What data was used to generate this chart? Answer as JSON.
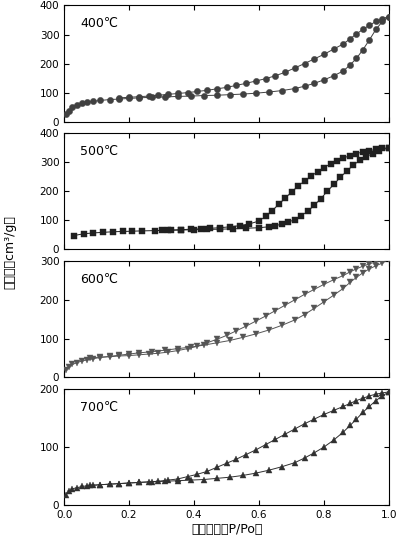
{
  "panels": [
    {
      "label": "400℃",
      "marker": "o",
      "color": "#404040",
      "ylim": [
        0,
        400
      ],
      "yticks": [
        0,
        100,
        200,
        300,
        400
      ],
      "ads_x": [
        0.005,
        0.015,
        0.025,
        0.04,
        0.055,
        0.07,
        0.09,
        0.11,
        0.14,
        0.17,
        0.2,
        0.23,
        0.27,
        0.31,
        0.35,
        0.39,
        0.43,
        0.47,
        0.51,
        0.55,
        0.59,
        0.63,
        0.67,
        0.71,
        0.74,
        0.77,
        0.8,
        0.83,
        0.86,
        0.88,
        0.9,
        0.92,
        0.94,
        0.96,
        0.98,
        1.0
      ],
      "ads_y": [
        25,
        38,
        50,
        58,
        63,
        67,
        70,
        73,
        76,
        78,
        80,
        82,
        84,
        85,
        87,
        88,
        90,
        91,
        93,
        95,
        98,
        102,
        107,
        114,
        122,
        132,
        144,
        158,
        175,
        195,
        218,
        248,
        282,
        318,
        345,
        362
      ],
      "des_x": [
        1.0,
        0.98,
        0.96,
        0.94,
        0.92,
        0.9,
        0.88,
        0.86,
        0.83,
        0.8,
        0.77,
        0.74,
        0.71,
        0.68,
        0.65,
        0.62,
        0.59,
        0.56,
        0.53,
        0.5,
        0.47,
        0.44,
        0.41,
        0.38,
        0.35,
        0.32,
        0.29,
        0.26,
        0.23,
        0.2,
        0.17
      ],
      "des_y": [
        362,
        355,
        345,
        332,
        318,
        302,
        285,
        268,
        250,
        232,
        216,
        200,
        185,
        170,
        158,
        148,
        140,
        132,
        125,
        118,
        113,
        108,
        104,
        100,
        97,
        94,
        91,
        88,
        86,
        84,
        82
      ]
    },
    {
      "label": "500℃",
      "marker": "s",
      "color": "#202020",
      "ylim": [
        0,
        400
      ],
      "yticks": [
        0,
        100,
        200,
        300,
        400
      ],
      "ads_x": [
        0.03,
        0.06,
        0.09,
        0.12,
        0.15,
        0.18,
        0.21,
        0.24,
        0.28,
        0.32,
        0.36,
        0.4,
        0.44,
        0.48,
        0.52,
        0.56,
        0.6,
        0.63,
        0.65,
        0.67,
        0.69,
        0.71,
        0.73,
        0.75,
        0.77,
        0.79,
        0.81,
        0.83,
        0.85,
        0.87,
        0.89,
        0.91,
        0.93,
        0.95,
        0.97,
        1.0
      ],
      "ads_y": [
        48,
        54,
        57,
        59,
        61,
        62,
        63,
        64,
        65,
        66,
        67,
        68,
        69,
        70,
        71,
        73,
        75,
        78,
        82,
        87,
        94,
        103,
        116,
        132,
        152,
        175,
        200,
        224,
        248,
        270,
        290,
        307,
        320,
        330,
        340,
        350
      ],
      "des_x": [
        1.0,
        0.98,
        0.96,
        0.94,
        0.92,
        0.9,
        0.88,
        0.86,
        0.84,
        0.82,
        0.8,
        0.78,
        0.76,
        0.74,
        0.72,
        0.7,
        0.68,
        0.66,
        0.64,
        0.62,
        0.6,
        0.57,
        0.54,
        0.51,
        0.48,
        0.45,
        0.42,
        0.39,
        0.36,
        0.33,
        0.3
      ],
      "des_y": [
        350,
        348,
        345,
        340,
        336,
        330,
        323,
        315,
        305,
        295,
        282,
        268,
        252,
        236,
        218,
        198,
        176,
        155,
        133,
        114,
        98,
        88,
        82,
        78,
        75,
        73,
        71,
        70,
        68,
        67,
        66
      ]
    },
    {
      "label": "600℃",
      "marker": "v",
      "color": "#555555",
      "ylim": [
        0,
        300
      ],
      "yticks": [
        0,
        100,
        200,
        300
      ],
      "ads_x": [
        0.005,
        0.015,
        0.025,
        0.04,
        0.055,
        0.07,
        0.09,
        0.11,
        0.14,
        0.17,
        0.2,
        0.23,
        0.27,
        0.31,
        0.35,
        0.39,
        0.43,
        0.47,
        0.51,
        0.55,
        0.59,
        0.63,
        0.67,
        0.71,
        0.74,
        0.77,
        0.8,
        0.83,
        0.86,
        0.88,
        0.9,
        0.92,
        0.94,
        0.96,
        0.98,
        1.0
      ],
      "ads_y": [
        18,
        26,
        33,
        38,
        42,
        45,
        48,
        51,
        54,
        57,
        60,
        63,
        66,
        70,
        74,
        78,
        83,
        89,
        95,
        103,
        112,
        122,
        134,
        148,
        162,
        178,
        195,
        212,
        230,
        245,
        258,
        270,
        280,
        288,
        295,
        305
      ],
      "des_x": [
        1.0,
        0.98,
        0.96,
        0.94,
        0.92,
        0.9,
        0.88,
        0.86,
        0.83,
        0.8,
        0.77,
        0.74,
        0.71,
        0.68,
        0.65,
        0.62,
        0.59,
        0.56,
        0.53,
        0.5,
        0.47,
        0.44,
        0.41,
        0.38,
        0.35,
        0.32,
        0.29,
        0.26,
        0.23,
        0.2,
        0.17,
        0.14,
        0.11,
        0.08
      ],
      "des_y": [
        305,
        302,
        298,
        293,
        287,
        280,
        272,
        263,
        252,
        240,
        227,
        214,
        200,
        186,
        172,
        158,
        145,
        132,
        120,
        108,
        98,
        89,
        80,
        74,
        69,
        65,
        62,
        60,
        58,
        56,
        55,
        53,
        52,
        50
      ]
    },
    {
      "label": "700℃",
      "marker": "^",
      "color": "#303030",
      "ylim": [
        0,
        200
      ],
      "yticks": [
        0,
        100,
        200
      ],
      "ads_x": [
        0.005,
        0.015,
        0.025,
        0.04,
        0.055,
        0.07,
        0.09,
        0.11,
        0.14,
        0.17,
        0.2,
        0.23,
        0.27,
        0.31,
        0.35,
        0.39,
        0.43,
        0.47,
        0.51,
        0.55,
        0.59,
        0.63,
        0.67,
        0.71,
        0.74,
        0.77,
        0.8,
        0.83,
        0.86,
        0.88,
        0.9,
        0.92,
        0.94,
        0.96,
        0.98,
        1.0
      ],
      "ads_y": [
        18,
        24,
        28,
        30,
        32,
        33,
        34,
        35,
        36,
        37,
        38,
        39,
        40,
        41,
        42,
        43,
        44,
        46,
        48,
        51,
        55,
        60,
        66,
        73,
        81,
        90,
        100,
        112,
        126,
        137,
        148,
        160,
        170,
        180,
        188,
        195
      ],
      "des_x": [
        1.0,
        0.98,
        0.96,
        0.94,
        0.92,
        0.9,
        0.88,
        0.86,
        0.83,
        0.8,
        0.77,
        0.74,
        0.71,
        0.68,
        0.65,
        0.62,
        0.59,
        0.56,
        0.53,
        0.5,
        0.47,
        0.44,
        0.41,
        0.38,
        0.35,
        0.32,
        0.29,
        0.26,
        0.23,
        0.2,
        0.17,
        0.14,
        0.11,
        0.08
      ],
      "des_y": [
        195,
        193,
        191,
        188,
        184,
        180,
        175,
        170,
        163,
        156,
        148,
        140,
        131,
        122,
        113,
        104,
        95,
        87,
        79,
        72,
        65,
        58,
        53,
        49,
        45,
        43,
        41,
        40,
        39,
        38,
        37,
        36,
        35,
        34
      ]
    }
  ],
  "xlabel": "相对压力（P/Po）",
  "ylabel": "吸附量（cm³/g）",
  "bg_color": "#ffffff",
  "markersize": 4.5
}
